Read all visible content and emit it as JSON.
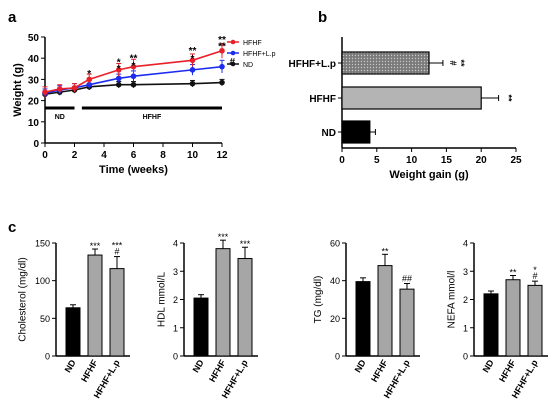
{
  "panels": {
    "a": "a",
    "b": "b",
    "c": "c"
  },
  "chart_data": [
    {
      "id": "a",
      "type": "line",
      "xlabel": "Time (weeks)",
      "ylabel": "Weight (g)",
      "xlim": [
        0,
        12
      ],
      "ylim": [
        0,
        50
      ],
      "xticks": [
        0,
        2,
        4,
        6,
        8,
        10,
        12
      ],
      "yticks": [
        0,
        10,
        20,
        30,
        40,
        50
      ],
      "legend_position": "top-right",
      "series": [
        {
          "name": "HFHF",
          "color": "#e8202a",
          "x": [
            0,
            1,
            2,
            3,
            5,
            6,
            10,
            12
          ],
          "values": [
            24,
            25.5,
            26,
            30,
            34.5,
            36,
            39,
            43.5
          ],
          "err": [
            2.5,
            2,
            2,
            2.5,
            3,
            3.5,
            3,
            3.5
          ]
        },
        {
          "name": "HFHF+L.p",
          "color": "#1b2cf0",
          "x": [
            0,
            1,
            2,
            3,
            5,
            6,
            10,
            12
          ],
          "values": [
            23.5,
            25,
            26,
            27.5,
            30.5,
            31.5,
            34.5,
            36
          ],
          "err": [
            2,
            2,
            2,
            2,
            2,
            2.5,
            2.5,
            3
          ]
        },
        {
          "name": "ND",
          "color": "#111111",
          "x": [
            0,
            1,
            2,
            3,
            5,
            6,
            10,
            12
          ],
          "values": [
            23,
            24,
            25,
            26.5,
            27.5,
            27.5,
            28,
            28.5
          ],
          "err": [
            1.5,
            1.5,
            1.5,
            1.5,
            1.5,
            1.5,
            1.5,
            1.5
          ]
        }
      ],
      "phases": [
        {
          "label": "ND",
          "from": 0,
          "to": 2
        },
        {
          "label": "HFHF",
          "from": 2.5,
          "to": 12
        }
      ],
      "annotations": [
        {
          "text": "*",
          "x": 3,
          "y": 31.2,
          "color": "#e8202a"
        },
        {
          "text": "*",
          "x": 5,
          "y": 36.5,
          "color": "#e8202a"
        },
        {
          "text": "*",
          "x": 5,
          "y": 33.5,
          "color": "#1b2cf0"
        },
        {
          "text": "**",
          "x": 6,
          "y": 38.5,
          "color": "#e8202a"
        },
        {
          "text": "*",
          "x": 6,
          "y": 35,
          "color": "#1b2cf0"
        },
        {
          "text": "**",
          "x": 10,
          "y": 42,
          "color": "#e8202a"
        },
        {
          "text": "*",
          "x": 10,
          "y": 38.2,
          "color": "#1b2cf0"
        },
        {
          "text": "**",
          "x": 12,
          "y": 47.2,
          "color": "#e8202a"
        },
        {
          "text": "**",
          "x": 12,
          "y": 44,
          "color": "#1b2cf0"
        },
        {
          "text": "#",
          "x": 12.7,
          "y": 36.8,
          "color": "#1b2cf0"
        }
      ]
    },
    {
      "id": "b",
      "type": "bar",
      "orientation": "horizontal",
      "xlabel": "Weight gain (g)",
      "xlim": [
        0,
        25
      ],
      "xticks": [
        0,
        5,
        10,
        15,
        20,
        25
      ],
      "categories": [
        "HFHF+L.p",
        "HFHF",
        "ND"
      ],
      "values": [
        12.5,
        20,
        4
      ],
      "err": [
        2,
        2.5,
        0.8
      ],
      "colors": [
        "#8a8a8a",
        "#b4b4b4",
        "#000000"
      ],
      "sig": [
        "**",
        "**",
        ""
      ],
      "sig2": [
        "#",
        "",
        ""
      ]
    },
    {
      "id": "c1",
      "type": "bar",
      "ylabel": "Cholesterol (mg/dl)",
      "ylim": [
        0,
        150
      ],
      "yticks": [
        0,
        50,
        100,
        150
      ],
      "categories": [
        "ND",
        "HFHF",
        "HFHF+L.p"
      ],
      "values": [
        64,
        134,
        116
      ],
      "err": [
        4,
        8,
        16
      ],
      "sig": [
        "",
        "***",
        "***"
      ],
      "sig2": [
        "",
        "",
        "#"
      ]
    },
    {
      "id": "c2",
      "type": "bar",
      "ylabel": "HDL mmol/L",
      "ylim": [
        0,
        4
      ],
      "yticks": [
        0,
        1,
        2,
        3,
        4
      ],
      "categories": [
        "ND",
        "HFHF",
        "HFHF+L.p"
      ],
      "values": [
        2.05,
        3.8,
        3.45
      ],
      "err": [
        0.12,
        0.3,
        0.4
      ],
      "sig": [
        "",
        "***",
        "***"
      ],
      "sig2": [
        "",
        "",
        ""
      ]
    },
    {
      "id": "c3",
      "type": "bar",
      "ylabel": "TG (mg/dl)",
      "ylim": [
        0,
        60
      ],
      "yticks": [
        0,
        20,
        40,
        60
      ],
      "categories": [
        "ND",
        "HFHF",
        "HFHF+L.p"
      ],
      "values": [
        39.5,
        48,
        35.5
      ],
      "err": [
        2,
        6,
        3
      ],
      "sig": [
        "",
        "**",
        ""
      ],
      "sig2": [
        "",
        "",
        "##"
      ]
    },
    {
      "id": "c4",
      "type": "bar",
      "ylabel": "NEFA mmol/l",
      "ylim": [
        0,
        4
      ],
      "yticks": [
        0,
        1,
        2,
        3,
        4
      ],
      "categories": [
        "ND",
        "HFHF",
        "HFHF+L.p"
      ],
      "values": [
        2.2,
        2.7,
        2.5
      ],
      "err": [
        0.1,
        0.15,
        0.15
      ],
      "sig": [
        "",
        "**",
        "*"
      ],
      "sig2": [
        "",
        "",
        "#"
      ]
    }
  ]
}
